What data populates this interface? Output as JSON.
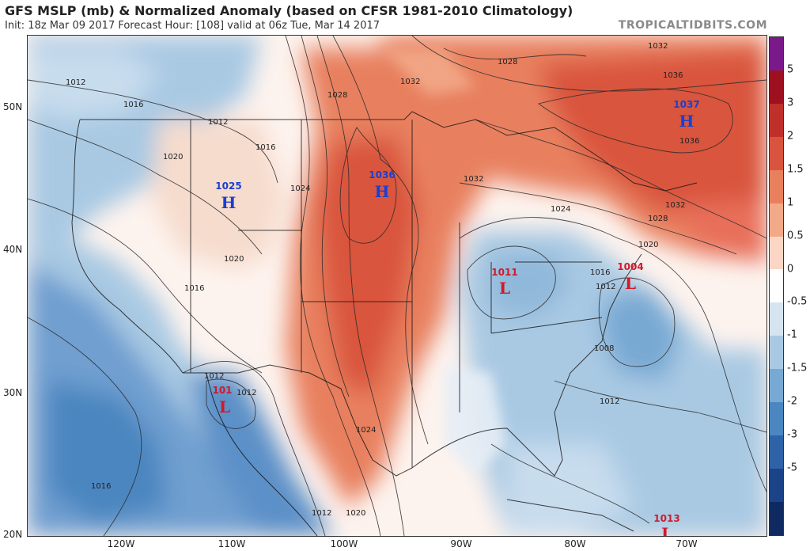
{
  "header": {
    "title": "GFS MSLP (mb) & Normalized Anomaly (based on CFSR 1981-2010 Climatology)",
    "subtitle": "Init: 18z Mar 09 2017   Forecast Hour: [108]   valid at 06z Tue, Mar 14 2017",
    "brand": "TROPICALTIDBITS.COM"
  },
  "axes": {
    "lat_labels": [
      "50N",
      "40N",
      "30N",
      "20N"
    ],
    "lon_labels": [
      "120W",
      "110W",
      "100W",
      "90W",
      "80W",
      "70W"
    ]
  },
  "colorbar": {
    "ticks": [
      "5",
      "3",
      "2",
      "1.5",
      "1",
      "0.5",
      "0",
      "-0.5",
      "-1",
      "-1.5",
      "-2",
      "-3",
      "-5"
    ],
    "colors": [
      "#7a1a8a",
      "#9c1020",
      "#c0302a",
      "#d9543e",
      "#e8805e",
      "#f2a988",
      "#fbd6c4",
      "#ffffff",
      "#d6e4f0",
      "#a9c9e3",
      "#78a9d3",
      "#4b86c0",
      "#2e63a8",
      "#1b4388",
      "#0f2a60"
    ]
  },
  "pressure_centers": [
    {
      "type": "H",
      "value": "1025",
      "color": "#1a3fd0"
    },
    {
      "type": "H",
      "value": "1036",
      "color": "#1a3fd0"
    },
    {
      "type": "H",
      "value": "1037",
      "color": "#1a3fd0"
    },
    {
      "type": "L",
      "value": "1011",
      "color": "#d01a2a"
    },
    {
      "type": "L",
      "value": "1004",
      "color": "#d01a2a"
    },
    {
      "type": "L",
      "value": "101",
      "color": "#d01a2a"
    },
    {
      "type": "L",
      "value": "1013",
      "color": "#d01a2a"
    }
  ],
  "isobar_labels": [
    "1012",
    "1016",
    "1012",
    "1016",
    "1020",
    "1024",
    "1028",
    "1032",
    "1028",
    "1032",
    "1036",
    "1036",
    "1032",
    "1032",
    "1024",
    "1028",
    "1020",
    "1016",
    "1012",
    "1008",
    "1012",
    "1012",
    "1016",
    "1016",
    "1020",
    "1024",
    "1020",
    "1012",
    "1012"
  ]
}
